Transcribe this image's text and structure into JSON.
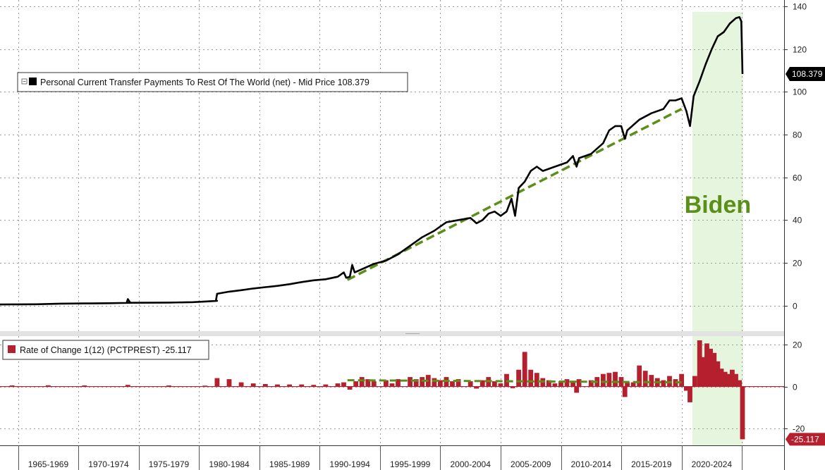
{
  "colors": {
    "main_line": "#000000",
    "trend": "#5b8f1a",
    "highlight": "#e6f5dd",
    "bars": "#b5202e",
    "grid": "#9a9a9a",
    "annotation": "#5b8f1a",
    "badge_top": "#000000",
    "badge_bottom": "#b5202e"
  },
  "chart_data": [
    {
      "type": "line",
      "legend_label": "Personal Current Transfer Payments To Rest Of The World (net) - Mid Price 108.379",
      "legend_position": "top-left",
      "last_value_label": "108.379",
      "ylim": [
        -12,
        143
      ],
      "y_ticks": [
        0,
        20,
        40,
        60,
        80,
        100,
        120,
        140
      ],
      "grid": true,
      "x_range": [
        1961.0,
        2026.0
      ],
      "x_period_labels": [
        "1965-1969",
        "1970-1974",
        "1975-1979",
        "1980-1984",
        "1985-1989",
        "1990-1994",
        "1995-1999",
        "2000-2004",
        "2005-2009",
        "2010-2014",
        "2015-2019",
        "2020-2024"
      ],
      "x_period_boundaries": [
        1962.5,
        1967.5,
        1972.5,
        1977.5,
        1982.5,
        1987.5,
        1992.5,
        1997.5,
        2002.5,
        2007.5,
        2012.5,
        2017.5,
        2022.5
      ],
      "highlight_span": [
        2018.4,
        2022.6
      ],
      "annotation": "Biden",
      "series": [
        {
          "values": [
            [
              1961.0,
              0.5
            ],
            [
              1964.0,
              0.6
            ],
            [
              1966.0,
              0.9
            ],
            [
              1968.0,
              1.0
            ],
            [
              1970.0,
              1.1
            ],
            [
              1971.0,
              1.2
            ],
            [
              1972.0,
              1.3
            ],
            [
              1971.5,
              1.3
            ],
            [
              1971.6,
              3.0
            ],
            [
              1971.8,
              1.3
            ],
            [
              1975.0,
              1.4
            ],
            [
              1977.0,
              1.6
            ],
            [
              1978.0,
              1.9
            ],
            [
              1979.0,
              2.2
            ],
            [
              1978.9,
              2.3
            ],
            [
              1979.0,
              5.5
            ],
            [
              1980.0,
              6.5
            ],
            [
              1981.0,
              7.2
            ],
            [
              1982.0,
              8.0
            ],
            [
              1983.0,
              8.6
            ],
            [
              1984.0,
              9.2
            ],
            [
              1985.0,
              10.0
            ],
            [
              1986.0,
              11.0
            ],
            [
              1987.0,
              11.8
            ],
            [
              1988.0,
              12.3
            ],
            [
              1989.0,
              13.5
            ],
            [
              1989.5,
              15.5
            ],
            [
              1989.7,
              13.0
            ],
            [
              1990.0,
              13.5
            ],
            [
              1990.2,
              19.0
            ],
            [
              1990.4,
              15.5
            ],
            [
              1991.0,
              17.0
            ],
            [
              1992.0,
              19.5
            ],
            [
              1993.0,
              21.0
            ],
            [
              1994.0,
              24.0
            ],
            [
              1995.0,
              28.0
            ],
            [
              1996.0,
              32.0
            ],
            [
              1997.0,
              35.0
            ],
            [
              1997.5,
              37.0
            ],
            [
              1998.0,
              39.0
            ],
            [
              1999.0,
              40.0
            ],
            [
              2000.0,
              41.0
            ],
            [
              2000.5,
              38.5
            ],
            [
              2001.0,
              40.0
            ],
            [
              2001.5,
              43.0
            ],
            [
              2002.0,
              44.0
            ],
            [
              2002.5,
              42.0
            ],
            [
              2003.0,
              44.0
            ],
            [
              2003.4,
              50.0
            ],
            [
              2003.7,
              42.0
            ],
            [
              2004.0,
              55.0
            ],
            [
              2004.5,
              58.0
            ],
            [
              2005.0,
              63.0
            ],
            [
              2005.5,
              65.0
            ],
            [
              2006.0,
              63.0
            ],
            [
              2007.0,
              65.0
            ],
            [
              2008.0,
              67.0
            ],
            [
              2008.5,
              70.0
            ],
            [
              2008.8,
              65.0
            ],
            [
              2009.0,
              69.0
            ],
            [
              2010.0,
              71.0
            ],
            [
              2011.0,
              76.0
            ],
            [
              2011.5,
              82.0
            ],
            [
              2012.0,
              84.0
            ],
            [
              2012.5,
              84.0
            ],
            [
              2012.8,
              78.0
            ],
            [
              2013.0,
              82.0
            ],
            [
              2014.0,
              87.0
            ],
            [
              2015.0,
              90.0
            ],
            [
              2016.0,
              92.0
            ],
            [
              2016.5,
              96.0
            ],
            [
              2017.0,
              96.0
            ],
            [
              2017.5,
              97.0
            ],
            [
              2017.9,
              91.0
            ],
            [
              2018.2,
              84.0
            ],
            [
              2018.5,
              98.0
            ],
            [
              2019.0,
              105.0
            ],
            [
              2019.5,
              113.0
            ],
            [
              2020.0,
              120.0
            ],
            [
              2020.5,
              126.0
            ],
            [
              2021.0,
              128.0
            ],
            [
              2021.5,
              132.0
            ],
            [
              2022.0,
              134.5
            ],
            [
              2022.3,
              135.0
            ],
            [
              2022.45,
              133.0
            ],
            [
              2022.55,
              108.379
            ]
          ]
        },
        {
          "name": "trend",
          "style": "dashed",
          "values": [
            [
              1989.8,
              12.0
            ],
            [
              2017.5,
              92.0
            ]
          ]
        }
      ]
    },
    {
      "type": "bar",
      "legend_label": "Rate of Change 1(12) (PCTPREST)  -25.117",
      "legend_position": "top-left",
      "last_value_label": "-25.117",
      "ylim": [
        -28,
        24
      ],
      "y_ticks": [
        -20,
        0,
        20
      ],
      "grid": true,
      "highlight_span": [
        2018.4,
        2022.6
      ],
      "trend": {
        "style": "dashed",
        "values": [
          [
            1989.8,
            3.0
          ],
          [
            2017.5,
            2.0
          ]
        ]
      },
      "series": [
        {
          "values": [
            [
              1962.0,
              0.5
            ],
            [
              1965.0,
              0.6
            ],
            [
              1968.0,
              0.5
            ],
            [
              1971.6,
              0.8
            ],
            [
              1975.0,
              0.5
            ],
            [
              1978.0,
              0.4
            ],
            [
              1979.0,
              4.0
            ],
            [
              1980.0,
              3.5
            ],
            [
              1981.0,
              2.0
            ],
            [
              1982.0,
              1.5
            ],
            [
              1983.0,
              1.2
            ],
            [
              1984.0,
              1.0
            ],
            [
              1985.0,
              1.0
            ],
            [
              1986.0,
              1.0
            ],
            [
              1987.0,
              0.8
            ],
            [
              1988.0,
              1.0
            ],
            [
              1989.0,
              1.5
            ],
            [
              1989.5,
              2.0
            ],
            [
              1990.0,
              -1.5
            ],
            [
              1990.5,
              2.5
            ],
            [
              1991.0,
              4.5
            ],
            [
              1991.5,
              3.5
            ],
            [
              1992.0,
              2.5
            ],
            [
              1993.0,
              3.0
            ],
            [
              1993.5,
              1.5
            ],
            [
              1994.0,
              3.5
            ],
            [
              1995.0,
              4.5
            ],
            [
              1995.5,
              3.5
            ],
            [
              1996.0,
              4.5
            ],
            [
              1996.5,
              5.5
            ],
            [
              1997.0,
              4.0
            ],
            [
              1997.5,
              3.0
            ],
            [
              1998.0,
              4.5
            ],
            [
              1998.5,
              2.5
            ],
            [
              1999.0,
              3.5
            ],
            [
              2000.0,
              2.5
            ],
            [
              2000.5,
              -1.0
            ],
            [
              2001.0,
              3.0
            ],
            [
              2001.5,
              4.5
            ],
            [
              2002.0,
              2.5
            ],
            [
              2002.5,
              1.5
            ],
            [
              2003.0,
              6.0
            ],
            [
              2003.5,
              -0.8
            ],
            [
              2004.0,
              8.0
            ],
            [
              2004.5,
              16.5
            ],
            [
              2005.0,
              8.0
            ],
            [
              2005.5,
              6.5
            ],
            [
              2006.0,
              4.0
            ],
            [
              2006.5,
              3.0
            ],
            [
              2007.0,
              1.5
            ],
            [
              2007.5,
              2.5
            ],
            [
              2008.0,
              3.5
            ],
            [
              2008.5,
              2.5
            ],
            [
              2008.8,
              -3.0
            ],
            [
              2009.0,
              3.5
            ],
            [
              2010.0,
              3.0
            ],
            [
              2010.5,
              4.5
            ],
            [
              2011.0,
              6.0
            ],
            [
              2011.5,
              6.5
            ],
            [
              2012.0,
              7.0
            ],
            [
              2012.5,
              4.5
            ],
            [
              2012.8,
              -5.0
            ],
            [
              2013.0,
              2.0
            ],
            [
              2013.5,
              2.0
            ],
            [
              2014.0,
              10.0
            ],
            [
              2014.5,
              7.5
            ],
            [
              2015.0,
              5.5
            ],
            [
              2015.5,
              4.0
            ],
            [
              2016.0,
              3.0
            ],
            [
              2016.5,
              5.0
            ],
            [
              2017.0,
              3.5
            ],
            [
              2017.5,
              6.0
            ],
            [
              2017.9,
              -2.0
            ],
            [
              2018.2,
              -7.5
            ],
            [
              2018.6,
              5.0
            ],
            [
              2019.0,
              22.0
            ],
            [
              2019.3,
              14.0
            ],
            [
              2019.6,
              20.5
            ],
            [
              2019.9,
              18.0
            ],
            [
              2020.2,
              16.0
            ],
            [
              2020.5,
              12.0
            ],
            [
              2020.8,
              8.5
            ],
            [
              2021.1,
              7.0
            ],
            [
              2021.4,
              6.0
            ],
            [
              2021.7,
              8.0
            ],
            [
              2022.0,
              6.0
            ],
            [
              2022.3,
              3.0
            ],
            [
              2022.55,
              -25.117
            ]
          ]
        }
      ]
    }
  ]
}
